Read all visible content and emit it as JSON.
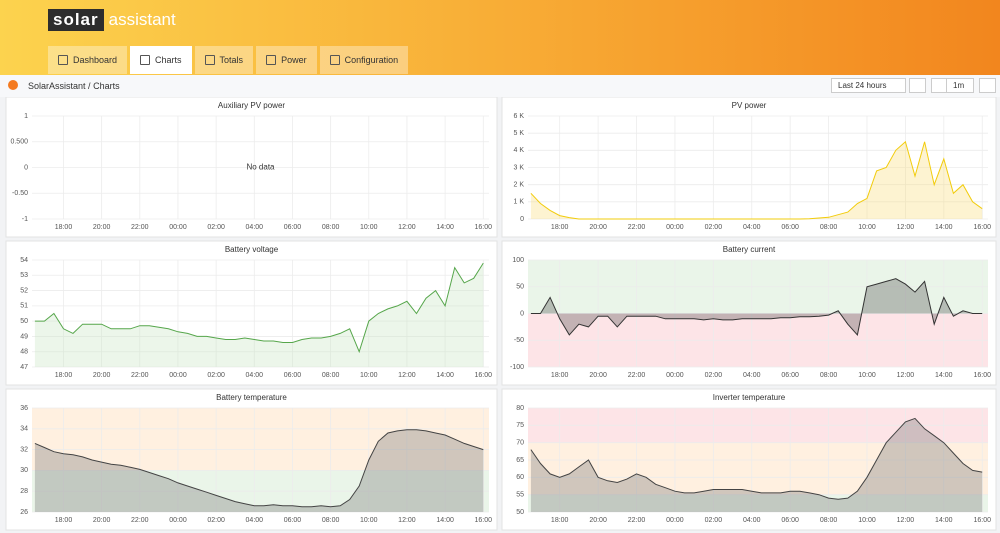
{
  "header": {
    "logo_bold": "solar",
    "logo_text": "assistant"
  },
  "tabs": [
    "Dashboard",
    "Charts",
    "Totals",
    "Power",
    "Configuration"
  ],
  "active_tab": 1,
  "breadcrumb": {
    "root": "SolarAssistant",
    "separator": "/",
    "page": "Charts"
  },
  "toolbar": {
    "time_range": "Last 24 hours",
    "refresh": "1m"
  },
  "chart_data": [
    {
      "type": "line",
      "title": "Auxiliary PV power",
      "no_data": "No data",
      "xlim": [
        16.35,
        40.3
      ],
      "ylim": [
        -1,
        1
      ],
      "yticks": [
        -1,
        {
          "value": -0.5,
          "label": "-0.50"
        },
        0,
        {
          "value": 0.5,
          "label": "0.500"
        },
        1
      ],
      "xticks": [
        {
          "value": 18,
          "label": "18:00"
        },
        {
          "value": 20,
          "label": "20:00"
        },
        {
          "value": 22,
          "label": "22:00"
        },
        {
          "value": 24,
          "label": "00:00"
        },
        {
          "value": 26,
          "label": "02:00"
        },
        {
          "value": 28,
          "label": "04:00"
        },
        {
          "value": 30,
          "label": "06:00"
        },
        {
          "value": 32,
          "label": "08:00"
        },
        {
          "value": 34,
          "label": "10:00"
        },
        {
          "value": 36,
          "label": "12:00"
        },
        {
          "value": 38,
          "label": "14:00"
        },
        {
          "value": 40,
          "label": "16:00"
        }
      ],
      "grid": true,
      "series": []
    },
    {
      "type": "line",
      "title": "PV power",
      "xlim": [
        16.35,
        40.3
      ],
      "ylim": [
        0,
        6000
      ],
      "yticks": [
        0,
        {
          "value": 1000,
          "label": "1 K"
        },
        {
          "value": 2000,
          "label": "2 K"
        },
        {
          "value": 3000,
          "label": "3 K"
        },
        {
          "value": 4000,
          "label": "4 K"
        },
        {
          "value": 5000,
          "label": "5 K"
        },
        {
          "value": 6000,
          "label": "6 K"
        }
      ],
      "xticks": [
        {
          "value": 18,
          "label": "18:00"
        },
        {
          "value": 20,
          "label": "20:00"
        },
        {
          "value": 22,
          "label": "22:00"
        },
        {
          "value": 24,
          "label": "00:00"
        },
        {
          "value": 26,
          "label": "02:00"
        },
        {
          "value": 28,
          "label": "04:00"
        },
        {
          "value": 30,
          "label": "06:00"
        },
        {
          "value": 32,
          "label": "08:00"
        },
        {
          "value": 34,
          "label": "10:00"
        },
        {
          "value": 36,
          "label": "12:00"
        },
        {
          "value": 38,
          "label": "14:00"
        },
        {
          "value": 40,
          "label": "16:00"
        }
      ],
      "grid": true,
      "x": [
        16.5,
        17,
        17.5,
        18,
        18.5,
        19,
        19.5,
        20,
        20.5,
        21,
        21.5,
        22,
        22.5,
        23,
        23.5,
        24,
        24.5,
        25,
        25.5,
        26,
        26.5,
        27,
        27.5,
        28,
        28.5,
        29,
        29.5,
        30,
        30.5,
        31,
        31.5,
        32,
        32.5,
        33,
        33.5,
        34,
        34.5,
        35,
        35.5,
        36,
        36.5,
        37,
        37.5,
        38,
        38.5,
        39,
        39.5,
        40
      ],
      "series": [
        {
          "color": "#f2cc0c",
          "fill": "#fade7a",
          "values": [
            1500,
            900,
            500,
            200,
            80,
            0,
            0,
            0,
            0,
            0,
            0,
            0,
            0,
            0,
            0,
            0,
            0,
            0,
            0,
            0,
            0,
            0,
            0,
            0,
            0,
            0,
            0,
            0,
            0,
            20,
            60,
            100,
            250,
            400,
            900,
            1200,
            2800,
            3000,
            4000,
            4500,
            2500,
            4500,
            2000,
            3500,
            1500,
            2000,
            1000,
            600
          ]
        }
      ]
    },
    {
      "type": "line",
      "title": "Battery voltage",
      "xlim": [
        16.35,
        40.3
      ],
      "ylim": [
        47,
        54
      ],
      "yticks": [
        47,
        48,
        49,
        50,
        51,
        52,
        53,
        54
      ],
      "xticks": [
        {
          "value": 18,
          "label": "18:00"
        },
        {
          "value": 20,
          "label": "20:00"
        },
        {
          "value": 22,
          "label": "22:00"
        },
        {
          "value": 24,
          "label": "00:00"
        },
        {
          "value": 26,
          "label": "02:00"
        },
        {
          "value": 28,
          "label": "04:00"
        },
        {
          "value": 30,
          "label": "06:00"
        },
        {
          "value": 32,
          "label": "08:00"
        },
        {
          "value": 34,
          "label": "10:00"
        },
        {
          "value": 36,
          "label": "12:00"
        },
        {
          "value": 38,
          "label": "14:00"
        },
        {
          "value": 40,
          "label": "16:00"
        }
      ],
      "grid": true,
      "x": [
        16.5,
        17,
        17.5,
        18,
        18.5,
        19,
        19.5,
        20,
        20.5,
        21,
        21.5,
        22,
        22.5,
        23,
        23.5,
        24,
        24.5,
        25,
        25.5,
        26,
        26.5,
        27,
        27.5,
        28,
        28.5,
        29,
        29.5,
        30,
        30.5,
        31,
        31.5,
        32,
        32.5,
        33,
        33.5,
        34,
        34.5,
        35,
        35.5,
        36,
        36.5,
        37,
        37.5,
        38,
        38.5,
        39,
        39.5,
        40
      ],
      "series": [
        {
          "color": "#56a64b",
          "fill": "#c8e6c4",
          "values": [
            50,
            50,
            50.5,
            49.5,
            49.2,
            49.8,
            49.8,
            49.8,
            49.5,
            49.5,
            49.5,
            49.7,
            49.7,
            49.6,
            49.5,
            49.3,
            49.2,
            49,
            49,
            48.9,
            48.8,
            48.8,
            48.9,
            48.8,
            48.7,
            48.7,
            48.6,
            48.6,
            48.8,
            48.9,
            48.9,
            49,
            49.2,
            49.5,
            48,
            50,
            50.5,
            50.8,
            51,
            51.3,
            50.5,
            51.5,
            52,
            51,
            53.5,
            52.5,
            52.8,
            53.8
          ]
        }
      ]
    },
    {
      "type": "line",
      "title": "Battery current",
      "xlim": [
        16.35,
        40.3
      ],
      "ylim": [
        -100,
        100
      ],
      "yticks": [
        -100,
        -50,
        0,
        50,
        100
      ],
      "xticks": [
        {
          "value": 18,
          "label": "18:00"
        },
        {
          "value": 20,
          "label": "20:00"
        },
        {
          "value": 22,
          "label": "22:00"
        },
        {
          "value": 24,
          "label": "00:00"
        },
        {
          "value": 26,
          "label": "02:00"
        },
        {
          "value": 28,
          "label": "04:00"
        },
        {
          "value": 30,
          "label": "06:00"
        },
        {
          "value": 32,
          "label": "08:00"
        },
        {
          "value": 34,
          "label": "10:00"
        },
        {
          "value": 36,
          "label": "12:00"
        },
        {
          "value": 38,
          "label": "14:00"
        },
        {
          "value": 40,
          "label": "16:00"
        }
      ],
      "grid": true,
      "thresholds": [
        {
          "from": 0,
          "to": 100,
          "color": "#73bf69"
        },
        {
          "from": -100,
          "to": 0,
          "color": "#f2495c"
        }
      ],
      "x": [
        16.5,
        17,
        17.5,
        18,
        18.5,
        19,
        19.5,
        20,
        20.5,
        21,
        21.5,
        22,
        22.5,
        23,
        23.5,
        24,
        24.5,
        25,
        25.5,
        26,
        26.5,
        27,
        27.5,
        28,
        28.5,
        29,
        29.5,
        30,
        30.5,
        31,
        31.5,
        32,
        32.5,
        33,
        33.5,
        34,
        34.5,
        35,
        35.5,
        36,
        36.5,
        37,
        37.5,
        38,
        38.5,
        39,
        39.5,
        40
      ],
      "series": [
        {
          "color": "#333333",
          "fill": "#555555",
          "values": [
            0,
            0,
            30,
            -10,
            -40,
            -20,
            -25,
            -5,
            -5,
            -25,
            -5,
            -5,
            -5,
            -5,
            -10,
            -10,
            -10,
            -10,
            -12,
            -10,
            -12,
            -12,
            -10,
            -10,
            -10,
            -10,
            -8,
            -8,
            -6,
            -6,
            -5,
            -3,
            5,
            -20,
            -40,
            50,
            55,
            60,
            65,
            55,
            40,
            60,
            -20,
            30,
            -5,
            5,
            0,
            0
          ]
        }
      ]
    },
    {
      "type": "line",
      "title": "Battery temperature",
      "xlim": [
        16.35,
        40.3
      ],
      "ylim": [
        26,
        36
      ],
      "yticks": [
        26,
        28,
        30,
        32,
        34,
        36
      ],
      "xticks": [
        {
          "value": 18,
          "label": "18:00"
        },
        {
          "value": 20,
          "label": "20:00"
        },
        {
          "value": 22,
          "label": "22:00"
        },
        {
          "value": 24,
          "label": "00:00"
        },
        {
          "value": 26,
          "label": "02:00"
        },
        {
          "value": 28,
          "label": "04:00"
        },
        {
          "value": 30,
          "label": "06:00"
        },
        {
          "value": 32,
          "label": "08:00"
        },
        {
          "value": 34,
          "label": "10:00"
        },
        {
          "value": 36,
          "label": "12:00"
        },
        {
          "value": 38,
          "label": "14:00"
        },
        {
          "value": 40,
          "label": "16:00"
        }
      ],
      "grid": true,
      "thresholds": [
        {
          "from": 30,
          "to": 36,
          "color": "#ff9830"
        },
        {
          "from": 26,
          "to": 30,
          "color": "#73bf69"
        }
      ],
      "x": [
        16.5,
        17,
        17.5,
        18,
        18.5,
        19,
        19.5,
        20,
        20.5,
        21,
        21.5,
        22,
        22.5,
        23,
        23.5,
        24,
        24.5,
        25,
        25.5,
        26,
        26.5,
        27,
        27.5,
        28,
        28.5,
        29,
        29.5,
        30,
        30.5,
        31,
        31.5,
        32,
        32.5,
        33,
        33.5,
        34,
        34.5,
        35,
        35.5,
        36,
        36.5,
        37,
        37.5,
        38,
        38.5,
        39,
        39.5,
        40
      ],
      "series": [
        {
          "color": "#444444",
          "fill": "#777777",
          "values": [
            32.6,
            32.2,
            31.8,
            31.6,
            31.5,
            31.3,
            31,
            30.8,
            30.6,
            30.5,
            30.3,
            30.1,
            29.8,
            29.5,
            29.2,
            28.8,
            28.5,
            28.2,
            27.9,
            27.6,
            27.3,
            27,
            26.8,
            26.6,
            26.6,
            26.7,
            26.6,
            26.6,
            26.5,
            26.5,
            26.6,
            26.5,
            26.6,
            27.2,
            28.5,
            31,
            32.8,
            33.6,
            33.8,
            33.9,
            33.9,
            33.8,
            33.6,
            33.4,
            33,
            32.6,
            32.3,
            32
          ]
        }
      ]
    },
    {
      "type": "line",
      "title": "Inverter temperature",
      "xlim": [
        16.35,
        40.3
      ],
      "ylim": [
        50,
        80
      ],
      "yticks": [
        50,
        55,
        60,
        65,
        70,
        75,
        80
      ],
      "xticks": [
        {
          "value": 18,
          "label": "18:00"
        },
        {
          "value": 20,
          "label": "20:00"
        },
        {
          "value": 22,
          "label": "22:00"
        },
        {
          "value": 24,
          "label": "00:00"
        },
        {
          "value": 26,
          "label": "02:00"
        },
        {
          "value": 28,
          "label": "04:00"
        },
        {
          "value": 30,
          "label": "06:00"
        },
        {
          "value": 32,
          "label": "08:00"
        },
        {
          "value": 34,
          "label": "10:00"
        },
        {
          "value": 36,
          "label": "12:00"
        },
        {
          "value": 38,
          "label": "14:00"
        },
        {
          "value": 40,
          "label": "16:00"
        }
      ],
      "grid": true,
      "thresholds": [
        {
          "from": 70,
          "to": 80,
          "color": "#f2495c"
        },
        {
          "from": 55,
          "to": 70,
          "color": "#ff9830"
        },
        {
          "from": 50,
          "to": 55,
          "color": "#73bf69"
        }
      ],
      "x": [
        16.5,
        17,
        17.5,
        18,
        18.5,
        19,
        19.5,
        20,
        20.5,
        21,
        21.5,
        22,
        22.5,
        23,
        23.5,
        24,
        24.5,
        25,
        25.5,
        26,
        26.5,
        27,
        27.5,
        28,
        28.5,
        29,
        29.5,
        30,
        30.5,
        31,
        31.5,
        32,
        32.5,
        33,
        33.5,
        34,
        34.5,
        35,
        35.5,
        36,
        36.5,
        37,
        37.5,
        38,
        38.5,
        39,
        39.5,
        40
      ],
      "series": [
        {
          "color": "#444444",
          "fill": "#777777",
          "values": [
            68,
            64,
            61,
            60,
            61,
            63,
            65,
            60,
            59,
            58.5,
            59.5,
            61,
            60,
            58,
            57,
            56,
            55.5,
            55.5,
            56,
            56.5,
            56.5,
            56.5,
            56.5,
            56,
            55.5,
            55.5,
            55.5,
            56,
            56,
            55.5,
            55,
            54,
            53.7,
            54,
            56,
            60,
            65,
            70,
            73,
            76,
            77,
            74,
            72,
            70,
            67,
            64,
            62,
            61.5
          ]
        }
      ]
    }
  ]
}
